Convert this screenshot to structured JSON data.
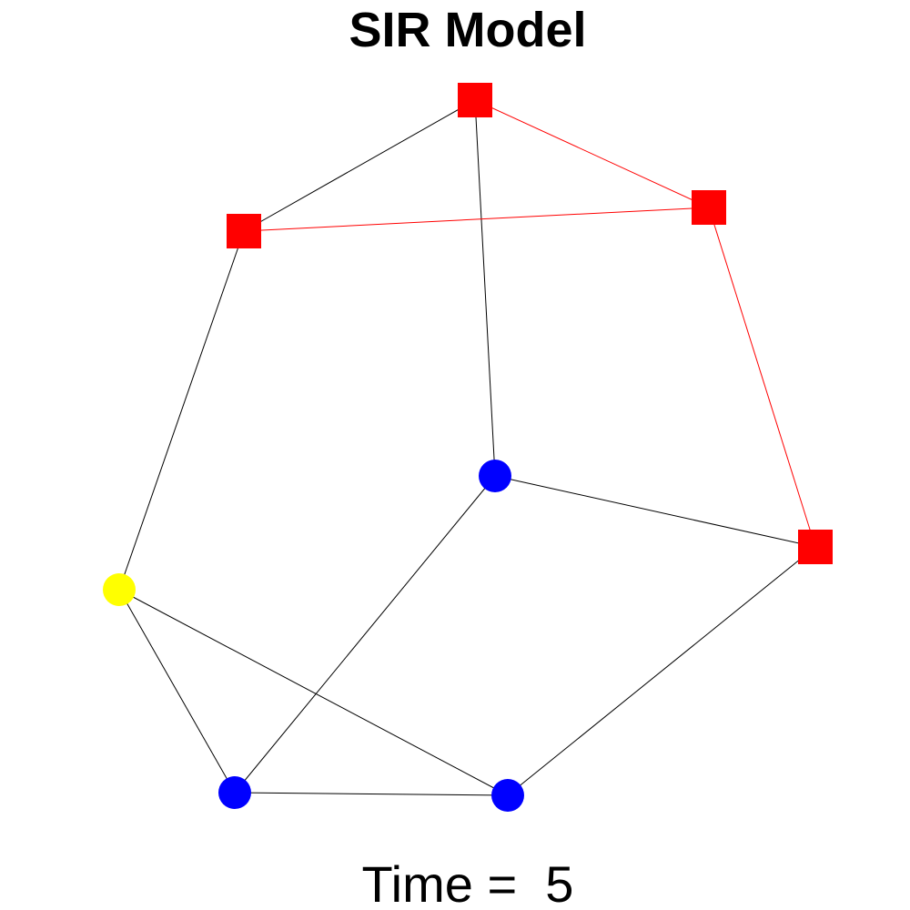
{
  "title": "SIR Model",
  "time_label": "Time =  5",
  "colors": {
    "infected": "#ff0000",
    "susceptible": "#0000ff",
    "recovered": "#ffff00",
    "edge_default": "#000000",
    "edge_infected": "#ff0000"
  },
  "nodes": [
    {
      "id": "n1",
      "state": "infected",
      "shape": "square"
    },
    {
      "id": "n2",
      "state": "infected",
      "shape": "square"
    },
    {
      "id": "n3",
      "state": "infected",
      "shape": "square"
    },
    {
      "id": "n4",
      "state": "infected",
      "shape": "square"
    },
    {
      "id": "n5",
      "state": "susceptible",
      "shape": "circle"
    },
    {
      "id": "n6",
      "state": "recovered",
      "shape": "circle"
    },
    {
      "id": "n7",
      "state": "susceptible",
      "shape": "circle"
    },
    {
      "id": "n8",
      "state": "susceptible",
      "shape": "circle"
    }
  ],
  "edges": [
    {
      "from": "n1",
      "to": "n2",
      "kind": "edge_default"
    },
    {
      "from": "n1",
      "to": "n3",
      "kind": "edge_infected"
    },
    {
      "from": "n1",
      "to": "n5",
      "kind": "edge_default"
    },
    {
      "from": "n2",
      "to": "n3",
      "kind": "edge_infected"
    },
    {
      "from": "n2",
      "to": "n6",
      "kind": "edge_default"
    },
    {
      "from": "n3",
      "to": "n4",
      "kind": "edge_infected"
    },
    {
      "from": "n5",
      "to": "n4",
      "kind": "edge_default"
    },
    {
      "from": "n5",
      "to": "n7",
      "kind": "edge_default"
    },
    {
      "from": "n4",
      "to": "n8",
      "kind": "edge_default"
    },
    {
      "from": "n6",
      "to": "n7",
      "kind": "edge_default"
    },
    {
      "from": "n6",
      "to": "n8",
      "kind": "edge_default"
    },
    {
      "from": "n7",
      "to": "n8",
      "kind": "edge_default"
    }
  ]
}
